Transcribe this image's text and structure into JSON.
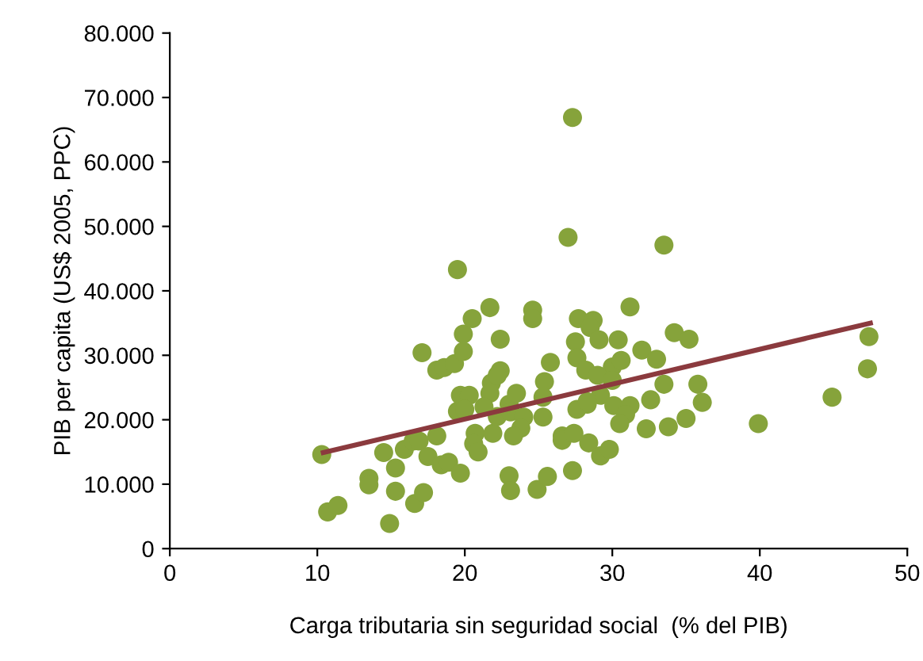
{
  "chart_data": {
    "type": "scatter",
    "xlabel": "Carga tributaria sin seguridad social  (% del PIB)",
    "ylabel": "PIB per capita (US$ 2005, PPC)",
    "xlim": [
      0,
      50
    ],
    "xticks": [
      0,
      10,
      20,
      30,
      40,
      50
    ],
    "ylim": [
      0,
      80000
    ],
    "yticks": [
      {
        "value": 0,
        "label": "0"
      },
      {
        "value": 10000,
        "label": "10.000"
      },
      {
        "value": 20000,
        "label": "20.000"
      },
      {
        "value": 30000,
        "label": "30.000"
      },
      {
        "value": 40000,
        "label": "40.000"
      },
      {
        "value": 50000,
        "label": "50.000"
      },
      {
        "value": 60000,
        "label": "60.000"
      },
      {
        "value": 70000,
        "label": "70.000"
      },
      {
        "value": 80000,
        "label": "80.000"
      }
    ],
    "grid": false,
    "marker": "circle",
    "series": [
      {
        "color": "#86a33b",
        "x": [
          10.3,
          10.7,
          11.4,
          13.5,
          13.5,
          14.5,
          15.3,
          15.3,
          14.9,
          15.9,
          16.5,
          16.9,
          17.5,
          16.6,
          17.2,
          17.1,
          18.1,
          18.1,
          18.6,
          19.3,
          18.4,
          18.9,
          19.7,
          19.5,
          19.9,
          19.9,
          20.5,
          19.5,
          19.7,
          20.3,
          20.0,
          20.7,
          20.6,
          20.9,
          21.7,
          22.4,
          21.8,
          21.7,
          22.4,
          22.2,
          21.3,
          21.9,
          22.2,
          23.0,
          23.5,
          23.1,
          24.0,
          23.8,
          23.3,
          23.0,
          23.1,
          24.9,
          25.6,
          25.3,
          25.4,
          25.3,
          25.8,
          24.6,
          24.6,
          27.3,
          26.6,
          26.6,
          27.4,
          28.4,
          29.2,
          29.8,
          27.0,
          27.7,
          28.7,
          28.5,
          27.5,
          29.1,
          27.6,
          28.2,
          30.0,
          29.2,
          30.1,
          28.3,
          27.6,
          27.3,
          33.5,
          31.2,
          30.4,
          34.2,
          35.2,
          30.6,
          32.0,
          33.0,
          29.0,
          30.0,
          33.5,
          35.8,
          28.3,
          31.2,
          32.6,
          36.1,
          30.9,
          30.5,
          32.3,
          33.8,
          35.0,
          39.9,
          44.9,
          47.4,
          47.3
        ],
        "values": [
          14600,
          5700,
          6700,
          10900,
          9900,
          14900,
          12500,
          8900,
          3900,
          15400,
          16700,
          16700,
          14300,
          7000,
          8700,
          30400,
          17500,
          27700,
          28100,
          28700,
          13000,
          13400,
          11700,
          43300,
          33300,
          30600,
          35700,
          21300,
          23800,
          23800,
          21600,
          17900,
          16300,
          15000,
          37400,
          32500,
          25700,
          24100,
          27600,
          26900,
          22000,
          17900,
          20500,
          22400,
          24100,
          21200,
          20400,
          18700,
          17500,
          11300,
          9000,
          9200,
          11200,
          20400,
          25900,
          23500,
          28900,
          37000,
          35700,
          12100,
          17500,
          16800,
          17900,
          16400,
          14400,
          15400,
          48300,
          35700,
          35400,
          34300,
          32100,
          32400,
          29600,
          27700,
          28200,
          23800,
          22200,
          22400,
          21600,
          66900,
          47100,
          37500,
          32400,
          33500,
          32500,
          29200,
          30800,
          29400,
          26900,
          26100,
          25500,
          25500,
          22800,
          22200,
          23100,
          22700,
          20800,
          19400,
          18600,
          18900,
          20200,
          19400,
          23500,
          32900,
          27900
        ]
      },
      {
        "type": "line",
        "color": "#8b3a3e",
        "marker": "none",
        "line_style": "solid",
        "x": [
          10.4,
          47.5
        ],
        "values": [
          14900,
          35000
        ]
      }
    ]
  }
}
